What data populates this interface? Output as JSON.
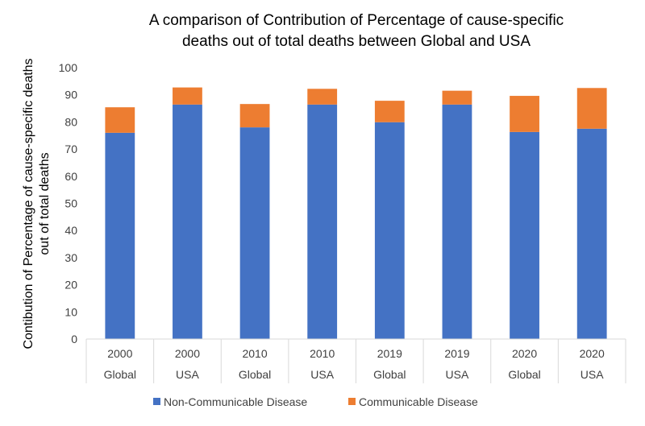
{
  "chart_data": {
    "type": "bar",
    "stacked": true,
    "title": "A comparison of Contribution of Percentage of cause-specific deaths out of total deaths between Global and USA",
    "title_lines": [
      "A comparison of Contribution of Percentage of cause-specific",
      "deaths out of total deaths between Global and USA"
    ],
    "xlabel": "",
    "ylabel": "Contibution of Percentage of cause-specific deaths out of total deaths",
    "ylabel_lines": [
      "Contibution of Percentage of cause-specific deaths",
      "out of total deaths"
    ],
    "ylim": [
      0,
      100
    ],
    "yticks": [
      0,
      10,
      20,
      30,
      40,
      50,
      60,
      70,
      80,
      90,
      100
    ],
    "grid": false,
    "legend": "bottom",
    "categories": [
      {
        "year": "2000",
        "region": "Global"
      },
      {
        "year": "2000",
        "region": "USA"
      },
      {
        "year": "2010",
        "region": "Global"
      },
      {
        "year": "2010",
        "region": "USA"
      },
      {
        "year": "2019",
        "region": "Global"
      },
      {
        "year": "2019",
        "region": "USA"
      },
      {
        "year": "2020",
        "region": "Global"
      },
      {
        "year": "2020",
        "region": "USA"
      }
    ],
    "series": [
      {
        "name": "Non-Communicable Disease",
        "color": "#4472C4",
        "values": [
          76.0,
          86.4,
          78.0,
          86.4,
          79.9,
          86.4,
          76.3,
          77.5
        ]
      },
      {
        "name": "Communicable Disease",
        "color": "#ED7D31",
        "values": [
          9.4,
          6.3,
          8.6,
          5.8,
          7.9,
          5.1,
          13.3,
          15.0
        ]
      }
    ]
  }
}
